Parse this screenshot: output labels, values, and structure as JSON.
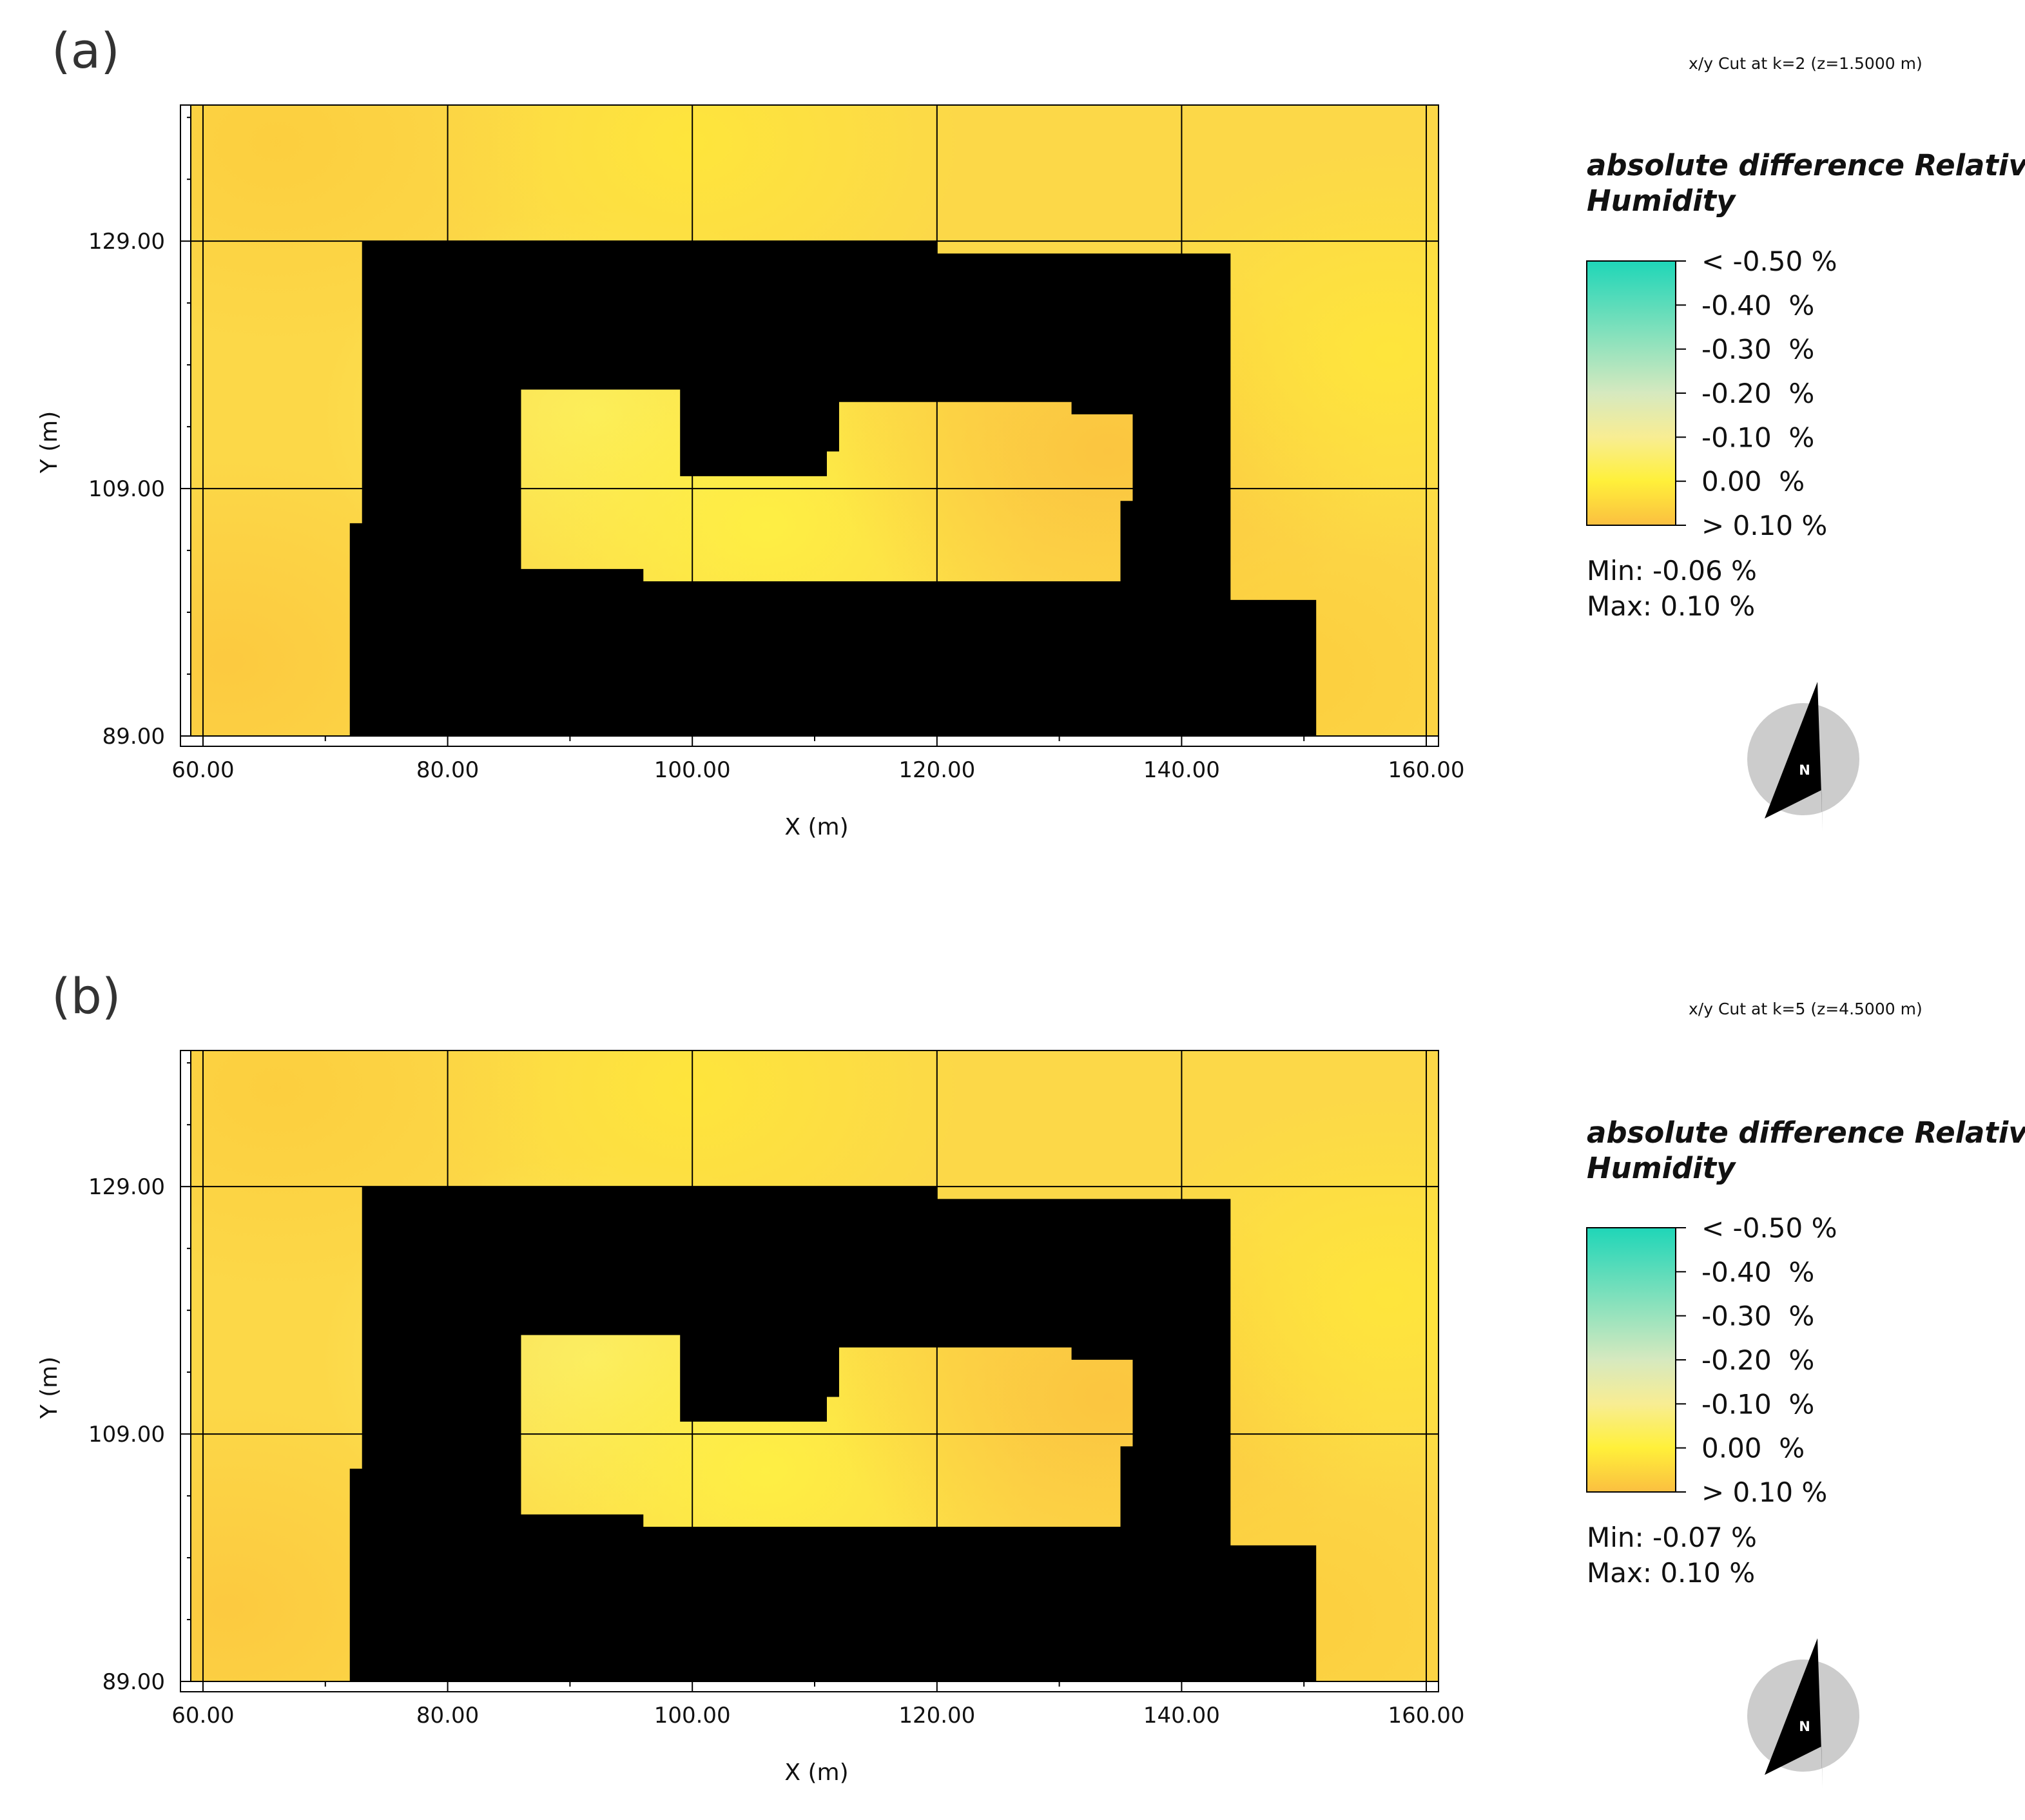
{
  "colors": {
    "scale_min": "#1fd6b8",
    "scale_mid": "#fff03a",
    "scale_max": "#fbbf40",
    "building": "#000000",
    "field_base": "#fcd848",
    "grid": "#000000",
    "compass_disc": "#cccccc",
    "compass_needle": "#000000"
  },
  "chart_data": [
    {
      "type": "heatmap",
      "panel_label": "(a)",
      "cut_label": "x/y Cut at k=2 (z=1.5000 m)",
      "title": "absolute difference Relative Humidity",
      "title_lines": [
        "absolute difference Relative",
        "Humidity"
      ],
      "xlabel": "X (m)",
      "ylabel": "Y (m)",
      "xlim": [
        59,
        161
      ],
      "ylim": [
        89,
        140
      ],
      "xticks": [
        60,
        80,
        100,
        120,
        140,
        160
      ],
      "xtick_labels": [
        "60.00",
        "80.00",
        "100.00",
        "120.00",
        "140.00",
        "160.00"
      ],
      "yticks": [
        89,
        109,
        129
      ],
      "ytick_labels": [
        "89.00",
        "109.00",
        "129.00"
      ],
      "legend_entries": [
        "< -0.50 %",
        "-0.40  %",
        "-0.30  %",
        "-0.20  %",
        "-0.10  %",
        "0.00  %",
        "> 0.10 %"
      ],
      "legend_values": [
        -0.5,
        -0.4,
        -0.3,
        -0.2,
        -0.1,
        0.0,
        0.1
      ],
      "min_label": "Min: -0.06 %",
      "max_label": "Max: 0.10 %",
      "min_value": -0.06,
      "max_value": 0.1,
      "compass": "N",
      "building_outer": [
        [
          73,
          129
        ],
        [
          120,
          129
        ],
        [
          120,
          128
        ],
        [
          144,
          128
        ],
        [
          144,
          100
        ],
        [
          151,
          100
        ],
        [
          151,
          89
        ],
        [
          72,
          89
        ],
        [
          72,
          106.2
        ],
        [
          73,
          106.2
        ]
      ],
      "courtyard": [
        [
          86,
          117
        ],
        [
          99,
          117
        ],
        [
          99,
          110
        ],
        [
          111,
          110
        ],
        [
          111,
          112
        ],
        [
          112,
          112
        ],
        [
          112,
          116
        ],
        [
          131,
          116
        ],
        [
          131,
          115
        ],
        [
          136,
          115
        ],
        [
          136,
          108
        ],
        [
          135,
          108
        ],
        [
          135,
          101.5
        ],
        [
          96,
          101.5
        ],
        [
          96,
          102.5
        ],
        [
          86,
          102.5
        ]
      ],
      "field_hotspots": [
        {
          "x": 92,
          "y": 115,
          "value": -0.04
        },
        {
          "x": 106,
          "y": 106,
          "value": -0.01
        },
        {
          "x": 134,
          "y": 112,
          "value": 0.09
        },
        {
          "x": 62,
          "y": 95,
          "value": 0.08
        },
        {
          "x": 149,
          "y": 94,
          "value": 0.07
        },
        {
          "x": 100,
          "y": 137,
          "value": 0.02
        },
        {
          "x": 66,
          "y": 137,
          "value": 0.07
        },
        {
          "x": 157,
          "y": 120,
          "value": 0.02
        }
      ]
    },
    {
      "type": "heatmap",
      "panel_label": "(b)",
      "cut_label": "x/y Cut at k=5 (z=4.5000 m)",
      "title": "absolute difference Relative Humidity",
      "title_lines": [
        "absolute difference Relative",
        "Humidity"
      ],
      "xlabel": "X (m)",
      "ylabel": "Y (m)",
      "xlim": [
        59,
        161
      ],
      "ylim": [
        89,
        140
      ],
      "xticks": [
        60,
        80,
        100,
        120,
        140,
        160
      ],
      "xtick_labels": [
        "60.00",
        "80.00",
        "100.00",
        "120.00",
        "140.00",
        "160.00"
      ],
      "yticks": [
        89,
        109,
        129
      ],
      "ytick_labels": [
        "89.00",
        "109.00",
        "129.00"
      ],
      "legend_entries": [
        "< -0.50 %",
        "-0.40  %",
        "-0.30  %",
        "-0.20  %",
        "-0.10  %",
        "0.00  %",
        "> 0.10 %"
      ],
      "legend_values": [
        -0.5,
        -0.4,
        -0.3,
        -0.2,
        -0.1,
        0.0,
        0.1
      ],
      "min_label": "Min: -0.07 %",
      "max_label": "Max: 0.10 %",
      "min_value": -0.07,
      "max_value": 0.1,
      "compass": "N",
      "building_outer": [
        [
          73,
          129
        ],
        [
          120,
          129
        ],
        [
          120,
          128
        ],
        [
          144,
          128
        ],
        [
          144,
          100
        ],
        [
          151,
          100
        ],
        [
          151,
          89
        ],
        [
          72,
          89
        ],
        [
          72,
          106.2
        ],
        [
          73,
          106.2
        ]
      ],
      "courtyard": [
        [
          86,
          117
        ],
        [
          99,
          117
        ],
        [
          99,
          110
        ],
        [
          111,
          110
        ],
        [
          111,
          112
        ],
        [
          112,
          112
        ],
        [
          112,
          116
        ],
        [
          131,
          116
        ],
        [
          131,
          115
        ],
        [
          136,
          115
        ],
        [
          136,
          108
        ],
        [
          135,
          108
        ],
        [
          135,
          101.5
        ],
        [
          96,
          101.5
        ],
        [
          96,
          102.5
        ],
        [
          86,
          102.5
        ]
      ],
      "field_hotspots": [
        {
          "x": 92,
          "y": 115,
          "value": -0.05
        },
        {
          "x": 106,
          "y": 106,
          "value": -0.01
        },
        {
          "x": 134,
          "y": 112,
          "value": 0.09
        },
        {
          "x": 62,
          "y": 95,
          "value": 0.08
        },
        {
          "x": 149,
          "y": 94,
          "value": 0.07
        },
        {
          "x": 100,
          "y": 137,
          "value": 0.02
        },
        {
          "x": 66,
          "y": 137,
          "value": 0.07
        },
        {
          "x": 157,
          "y": 120,
          "value": 0.02
        }
      ]
    }
  ]
}
